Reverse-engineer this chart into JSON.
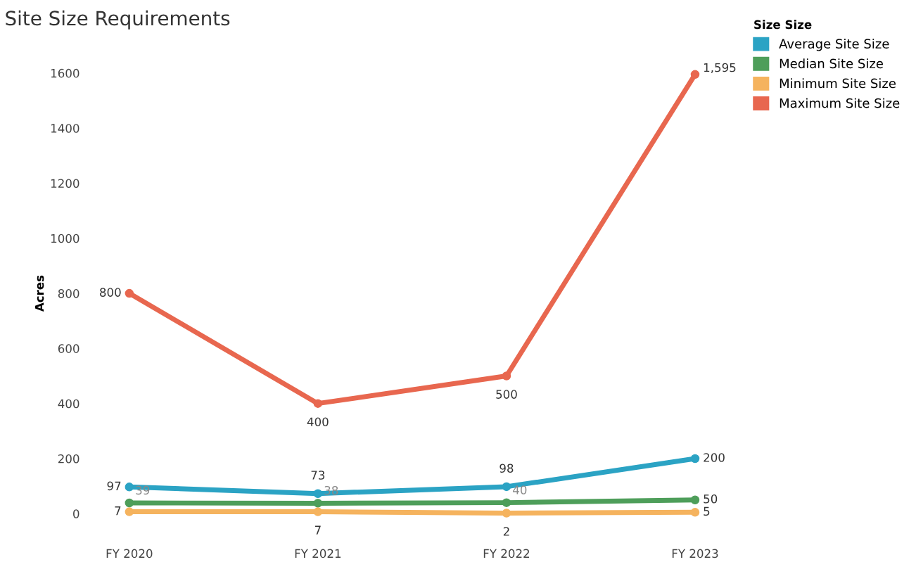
{
  "chart_data": {
    "type": "line",
    "title": "Site Size Requirements",
    "ylabel": "Acres",
    "legend_title": "Size Size",
    "categories": [
      "FY 2020",
      "FY 2021",
      "FY 2022",
      "FY 2023"
    ],
    "series": [
      {
        "name": "Average Site Size",
        "color": "#2ba3c4",
        "values": [
          97,
          73,
          98,
          200
        ],
        "value_labels": [
          "97",
          "73",
          "98",
          "200"
        ]
      },
      {
        "name": "Median Site Size",
        "color": "#4e9e5a",
        "values": [
          39,
          38,
          40,
          50
        ],
        "value_labels": [
          "39",
          "38",
          "40",
          "50"
        ]
      },
      {
        "name": "Minimum Site Size",
        "color": "#f5b35e",
        "values": [
          7,
          7,
          2,
          5
        ],
        "value_labels": [
          "7",
          "7",
          "2",
          "5"
        ]
      },
      {
        "name": "Maximum Site Size",
        "color": "#e8674f",
        "values": [
          800,
          400,
          500,
          1595
        ],
        "value_labels": [
          "800",
          "400",
          "500",
          "1,595"
        ]
      }
    ],
    "ylim": [
      0,
      1600
    ],
    "yticks": [
      0,
      200,
      400,
      600,
      800,
      1000,
      1200,
      1400,
      1600
    ],
    "grid": false,
    "legend": "top right",
    "marker": "circle",
    "line_style": "solid"
  }
}
